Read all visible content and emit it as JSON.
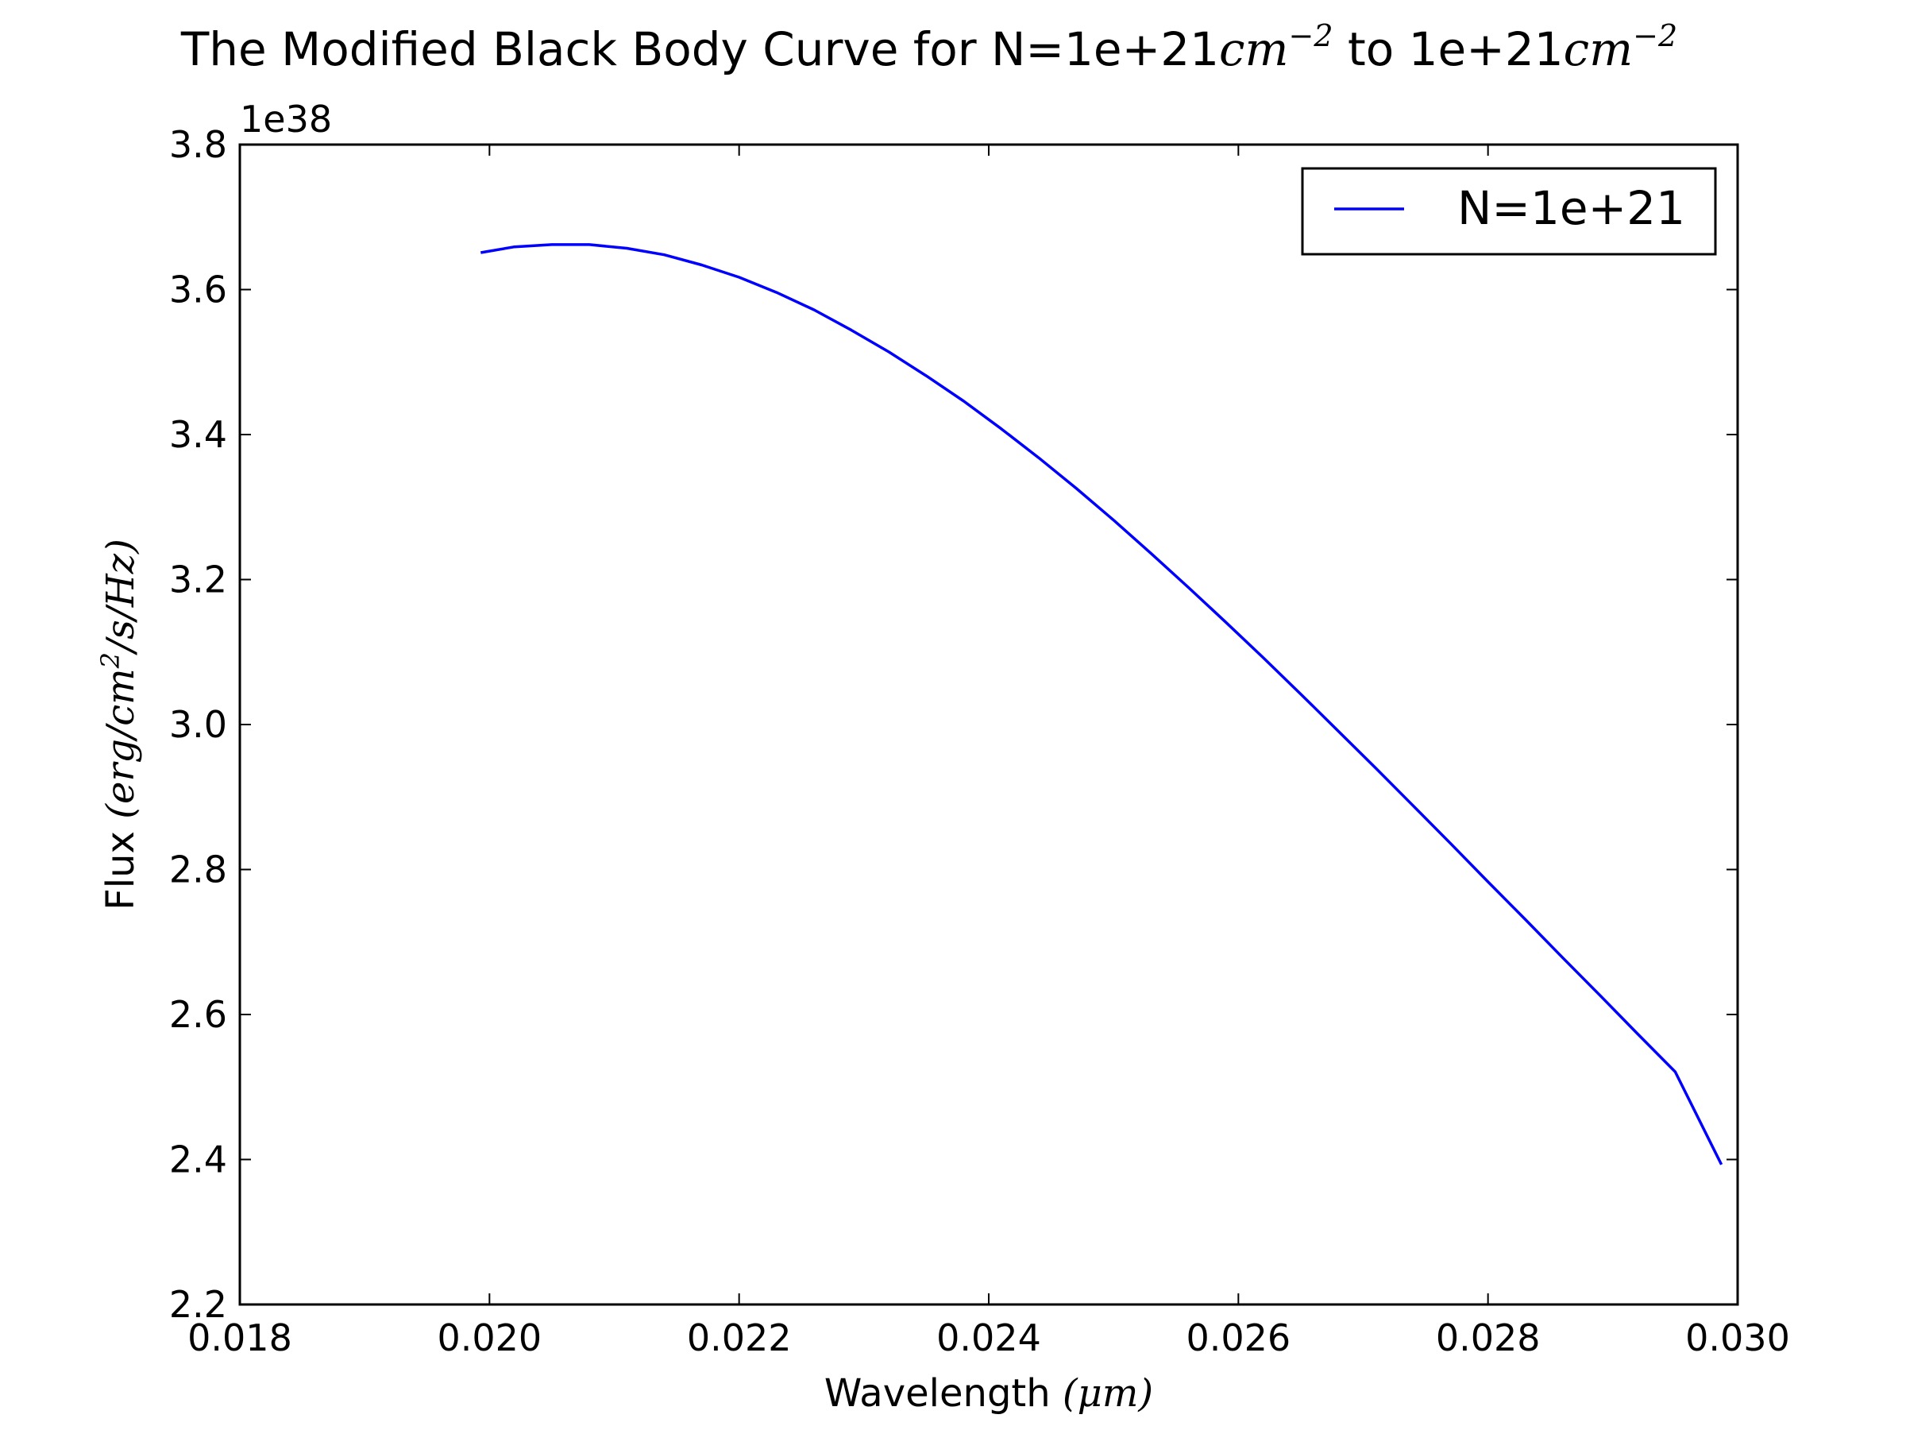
{
  "chart_data": {
    "type": "line",
    "title": {
      "prefix": "The Modified Black Body Curve for N=1e+21",
      "unit1": "cm",
      "sup1": "−2",
      "middle": " to 1e+21",
      "unit2": "cm",
      "sup2": "−2"
    },
    "xlabel": {
      "text": "Wavelength ",
      "math": "(μm)"
    },
    "ylabel": {
      "text": "Flux ",
      "math": "(erg/cm",
      "sup": "2",
      "math_end": "/s/Hz)"
    },
    "y_offset_label": "1e38",
    "xlim": [
      0.018,
      0.03
    ],
    "ylim": [
      2.2,
      3.8
    ],
    "x_ticks": [
      0.018,
      0.02,
      0.022,
      0.024,
      0.026,
      0.028,
      0.03
    ],
    "x_tick_labels": [
      "0.018",
      "0.020",
      "0.022",
      "0.024",
      "0.026",
      "0.028",
      "0.030"
    ],
    "y_ticks": [
      2.2,
      2.4,
      2.6,
      2.8,
      3.0,
      3.2,
      3.4,
      3.6,
      3.8
    ],
    "y_tick_labels": [
      "2.2",
      "2.4",
      "2.6",
      "2.8",
      "3.0",
      "3.2",
      "3.4",
      "3.6",
      "3.8"
    ],
    "grid": false,
    "legend_position": "top-right",
    "series": [
      {
        "name": "N=1e+21",
        "color": "#0000ff",
        "x": [
          0.01993,
          0.0202,
          0.0205,
          0.0208,
          0.0211,
          0.0214,
          0.0217,
          0.022,
          0.0223,
          0.0226,
          0.0229,
          0.0232,
          0.0235,
          0.0238,
          0.0241,
          0.0244,
          0.0247,
          0.025,
          0.0253,
          0.0256,
          0.0259,
          0.0262,
          0.0265,
          0.0268,
          0.0271,
          0.0274,
          0.0277,
          0.028,
          0.0283,
          0.0286,
          0.0289,
          0.0292,
          0.0295,
          0.02987
        ],
        "values": [
          3.651,
          3.659,
          3.662,
          3.662,
          3.657,
          3.648,
          3.634,
          3.617,
          3.596,
          3.572,
          3.544,
          3.514,
          3.481,
          3.446,
          3.408,
          3.368,
          3.326,
          3.282,
          3.236,
          3.189,
          3.141,
          3.092,
          3.042,
          2.991,
          2.94,
          2.888,
          2.836,
          2.783,
          2.731,
          2.678,
          2.626,
          2.573,
          2.521,
          2.393
        ]
      }
    ]
  }
}
